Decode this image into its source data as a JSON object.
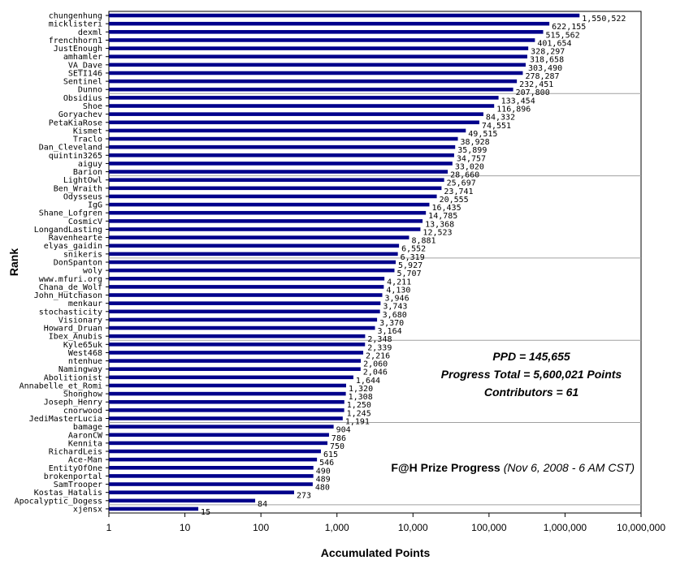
{
  "chart_data": {
    "type": "bar",
    "orientation": "horizontal",
    "xscale": "log",
    "xlim": [
      1,
      10000000
    ],
    "xticks": [
      "1",
      "10",
      "100",
      "1,000",
      "10,000",
      "100,000",
      "1,000,000",
      "10,000,000"
    ],
    "xlabel": "Accumulated Points",
    "ylabel": "Rank",
    "grid": true,
    "bar_color": "#00008B",
    "categories": [
      "chungenhung",
      "micklisteri",
      "dexml",
      "frenchhorn1",
      "JustEnough",
      "amhamler",
      "VA_Dave",
      "SETI146",
      "Sentinel",
      "Dunno",
      "Obsidius",
      "Shoe",
      "Goryachev",
      "PetaKiaRose",
      "Kismet",
      "Traclo",
      "Dan_Cleveland",
      "quintin3265",
      "aiguy",
      "Barion",
      "LightOwl",
      "Ben_Wraith",
      "Odysseus",
      "IgG",
      "Shane_Lofgren",
      "CosmicV",
      "LongandLasting",
      "Ravenhearte",
      "elyas_gaidin",
      "snikeris",
      "DonSpanton",
      "woly",
      "www.mfuri.org",
      "Chana_de_Wolf",
      "John_Hutchason",
      "menkaur",
      "stochasticity",
      "Visionary",
      "Howard_Druan",
      "Ibex_Anubis",
      "Kyle65uk",
      "West468",
      "ntenhue",
      "Namingway",
      "Abolitionist",
      "Annabelle_et_Romi",
      "Shonghow",
      "Joseph_Henry",
      "cnorwood",
      "JediMasterLucia",
      "bamage",
      "AaronCW",
      "Kennita",
      "RichardLeis",
      "Ace-Man",
      "EntityOfOne",
      "brokenportal",
      "SamTrooper",
      "Kostas_Hatalis",
      "Apocalyptic_Dogess",
      "xjensx"
    ],
    "values": [
      1550522,
      622155,
      515562,
      401654,
      328297,
      318658,
      303490,
      278287,
      232451,
      207800,
      133454,
      116896,
      84332,
      74551,
      49515,
      38928,
      35899,
      34757,
      33020,
      28660,
      25697,
      23741,
      20555,
      16435,
      14785,
      13368,
      12523,
      8881,
      6552,
      6319,
      5927,
      5707,
      4211,
      4130,
      3946,
      3743,
      3680,
      3370,
      3164,
      2348,
      2339,
      2216,
      2060,
      2046,
      1644,
      1320,
      1308,
      1250,
      1245,
      1191,
      904,
      786,
      750,
      615,
      546,
      490,
      489,
      480,
      273,
      84,
      15
    ],
    "value_labels": [
      "1,550,522",
      "622,155",
      "515,562",
      "401,654",
      "328,297",
      "318,658",
      "303,490",
      "278,287",
      "232,451",
      "207,800",
      "133,454",
      "116,896",
      "84,332",
      "74,551",
      "49,515",
      "38,928",
      "35,899",
      "34,757",
      "33,020",
      "28,660",
      "25,697",
      "23,741",
      "20,555",
      "16,435",
      "14,785",
      "13,368",
      "12,523",
      "8,881",
      "6,552",
      "6,319",
      "5,927",
      "5,707",
      "4,211",
      "4,130",
      "3,946",
      "3,743",
      "3,680",
      "3,370",
      "3,164",
      "2,348",
      "2,339",
      "2,216",
      "2,060",
      "2,046",
      "1,644",
      "1,320",
      "1,308",
      "1,250",
      "1,245",
      "1,191",
      "904",
      "786",
      "750",
      "615",
      "546",
      "490",
      "489",
      "480",
      "273",
      "84",
      "15"
    ],
    "annotations": {
      "ppd": "PPD = 145,655",
      "progress_total": "Progress Total = 5,600,021 Points",
      "contributors": "Contributors = 61",
      "prize_title": "F@H Prize Progress",
      "prize_date": "(Nov 6, 2008 - 6 AM CST)"
    }
  }
}
